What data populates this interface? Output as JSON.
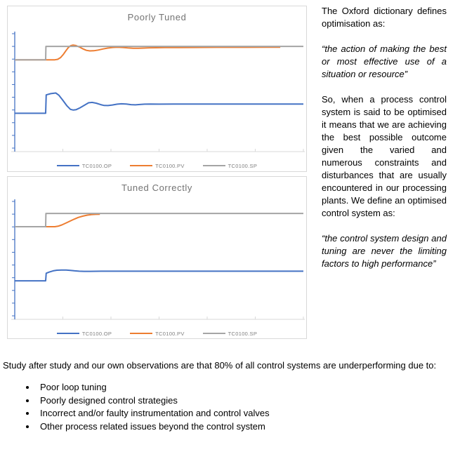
{
  "chart_data": [
    {
      "type": "line",
      "title": "Poorly Tuned",
      "xlabel": "",
      "ylabel": "",
      "x_range": [
        0,
        100
      ],
      "y_range": [
        0,
        100
      ],
      "axes_unlabeled": true,
      "grid": false,
      "legend_position": "bottom",
      "axis_color": "#4472C4",
      "x_axis_color": "#D9D9D9",
      "series": [
        {
          "name": "TC0100.OP",
          "color": "#4472C4",
          "points": [
            [
              0,
              32.3
            ],
            [
              10.7,
              32.3
            ],
            [
              10.9,
              47.8
            ],
            [
              12.5,
              48.9
            ],
            [
              14.2,
              49.4
            ],
            [
              15.3,
              47.5
            ],
            [
              16.6,
              43.5
            ],
            [
              18,
              38.8
            ],
            [
              19.3,
              35.6
            ],
            [
              20.3,
              35.0
            ],
            [
              21.3,
              35.4
            ],
            [
              22.6,
              36.9
            ],
            [
              24.2,
              39.2
            ],
            [
              25.6,
              41.2
            ],
            [
              26.8,
              41.5
            ],
            [
              28.2,
              40.8
            ],
            [
              29.8,
              39.6
            ],
            [
              31,
              38.9
            ],
            [
              32.3,
              38.8
            ],
            [
              33.8,
              39.3
            ],
            [
              35.5,
              40.0
            ],
            [
              37,
              40.3
            ],
            [
              38.7,
              40.1
            ],
            [
              40.3,
              39.6
            ],
            [
              41.8,
              39.4
            ],
            [
              43.3,
              39.7
            ],
            [
              45,
              40.0
            ],
            [
              47,
              40.1
            ],
            [
              50,
              40.0
            ],
            [
              55,
              40.1
            ],
            [
              100,
              40.1
            ]
          ]
        },
        {
          "name": "TC0100.PV",
          "color": "#ED7D31",
          "points": [
            [
              0,
              77.4
            ],
            [
              13.9,
              77.4
            ],
            [
              14.9,
              77.8
            ],
            [
              15.9,
              79.3
            ],
            [
              16.9,
              82.2
            ],
            [
              17.8,
              85.3
            ],
            [
              18.6,
              87.8
            ],
            [
              19.4,
              89.3
            ],
            [
              20.2,
              89.8
            ],
            [
              21.2,
              89.4
            ],
            [
              22.4,
              88.2
            ],
            [
              23.6,
              86.6
            ],
            [
              24.8,
              85.4
            ],
            [
              26,
              84.9
            ],
            [
              27.4,
              85.0
            ],
            [
              28.9,
              85.6
            ],
            [
              30.5,
              86.5
            ],
            [
              32.2,
              87.3
            ],
            [
              33.9,
              87.8
            ],
            [
              35.6,
              88.0
            ],
            [
              37.4,
              87.8
            ],
            [
              39.2,
              87.4
            ],
            [
              41,
              87.1
            ],
            [
              42.8,
              87.1
            ],
            [
              44.6,
              87.3
            ],
            [
              46.6,
              87.5
            ],
            [
              49,
              87.6
            ],
            [
              52,
              87.7
            ],
            [
              56,
              87.7
            ],
            [
              62,
              87.8
            ],
            [
              70,
              87.9
            ],
            [
              80,
              87.9
            ],
            [
              88,
              88.0
            ],
            [
              92,
              88.0
            ]
          ]
        },
        {
          "name": "TC0100.SP",
          "color": "#A5A5A5",
          "points": [
            [
              0,
              77.4
            ],
            [
              10.7,
              77.4
            ],
            [
              10.8,
              88.7
            ],
            [
              100,
              88.7
            ]
          ]
        }
      ]
    },
    {
      "type": "line",
      "title": "Tuned Correctly",
      "xlabel": "",
      "ylabel": "",
      "x_range": [
        0,
        100
      ],
      "y_range": [
        0,
        100
      ],
      "axes_unlabeled": true,
      "grid": false,
      "legend_position": "bottom",
      "axis_color": "#4472C4",
      "x_axis_color": "#D9D9D9",
      "series": [
        {
          "name": "TC0100.OP",
          "color": "#4472C4",
          "points": [
            [
              0,
              32.5
            ],
            [
              10.7,
              32.5
            ],
            [
              10.9,
              38.9
            ],
            [
              12,
              39.9
            ],
            [
              13.3,
              40.9
            ],
            [
              14.6,
              41.4
            ],
            [
              16.2,
              41.6
            ],
            [
              17.8,
              41.6
            ],
            [
              19.3,
              41.3
            ],
            [
              20.8,
              40.9
            ],
            [
              22.3,
              40.6
            ],
            [
              24,
              40.5
            ],
            [
              26,
              40.5
            ],
            [
              30,
              40.6
            ],
            [
              100,
              40.6
            ]
          ]
        },
        {
          "name": "TC0100.PV",
          "color": "#ED7D31",
          "points": [
            [
              0,
              78.1
            ],
            [
              13.9,
              78.1
            ],
            [
              15,
              78.5
            ],
            [
              16.3,
              79.6
            ],
            [
              17.7,
              81.1
            ],
            [
              19.1,
              82.8
            ],
            [
              20.5,
              84.4
            ],
            [
              22,
              85.9
            ],
            [
              23.5,
              87.0
            ],
            [
              25,
              87.8
            ],
            [
              26.5,
              88.3
            ],
            [
              28,
              88.5
            ],
            [
              29.5,
              88.6
            ]
          ]
        },
        {
          "name": "TC0100.SP",
          "color": "#A5A5A5",
          "points": [
            [
              0,
              78.1
            ],
            [
              10.7,
              78.1
            ],
            [
              10.8,
              89.3
            ],
            [
              100,
              89.3
            ]
          ]
        }
      ]
    }
  ],
  "right_text": {
    "p1": "The Oxford dictionary defines optimisation as:",
    "quote1": "“the action of making the best or most effective use of a situation or resource”",
    "p2": "So, when a process control system is said to be optimised it means that we are achieving the best possible outcome given the varied and numerous constraints and disturbances that are usually encountered in our processing plants. We define an optimised control system as:",
    "quote2": "“the control system design and tuning are never the limiting factors to high performance”"
  },
  "bottom": {
    "intro": "Study after study and our own observations are that 80% of all control systems are underperforming due to:",
    "bullets": [
      "Poor loop tuning",
      "Poorly designed control strategies",
      "Incorrect and/or faulty instrumentation and control valves",
      "Other process related issues beyond the control system"
    ]
  }
}
